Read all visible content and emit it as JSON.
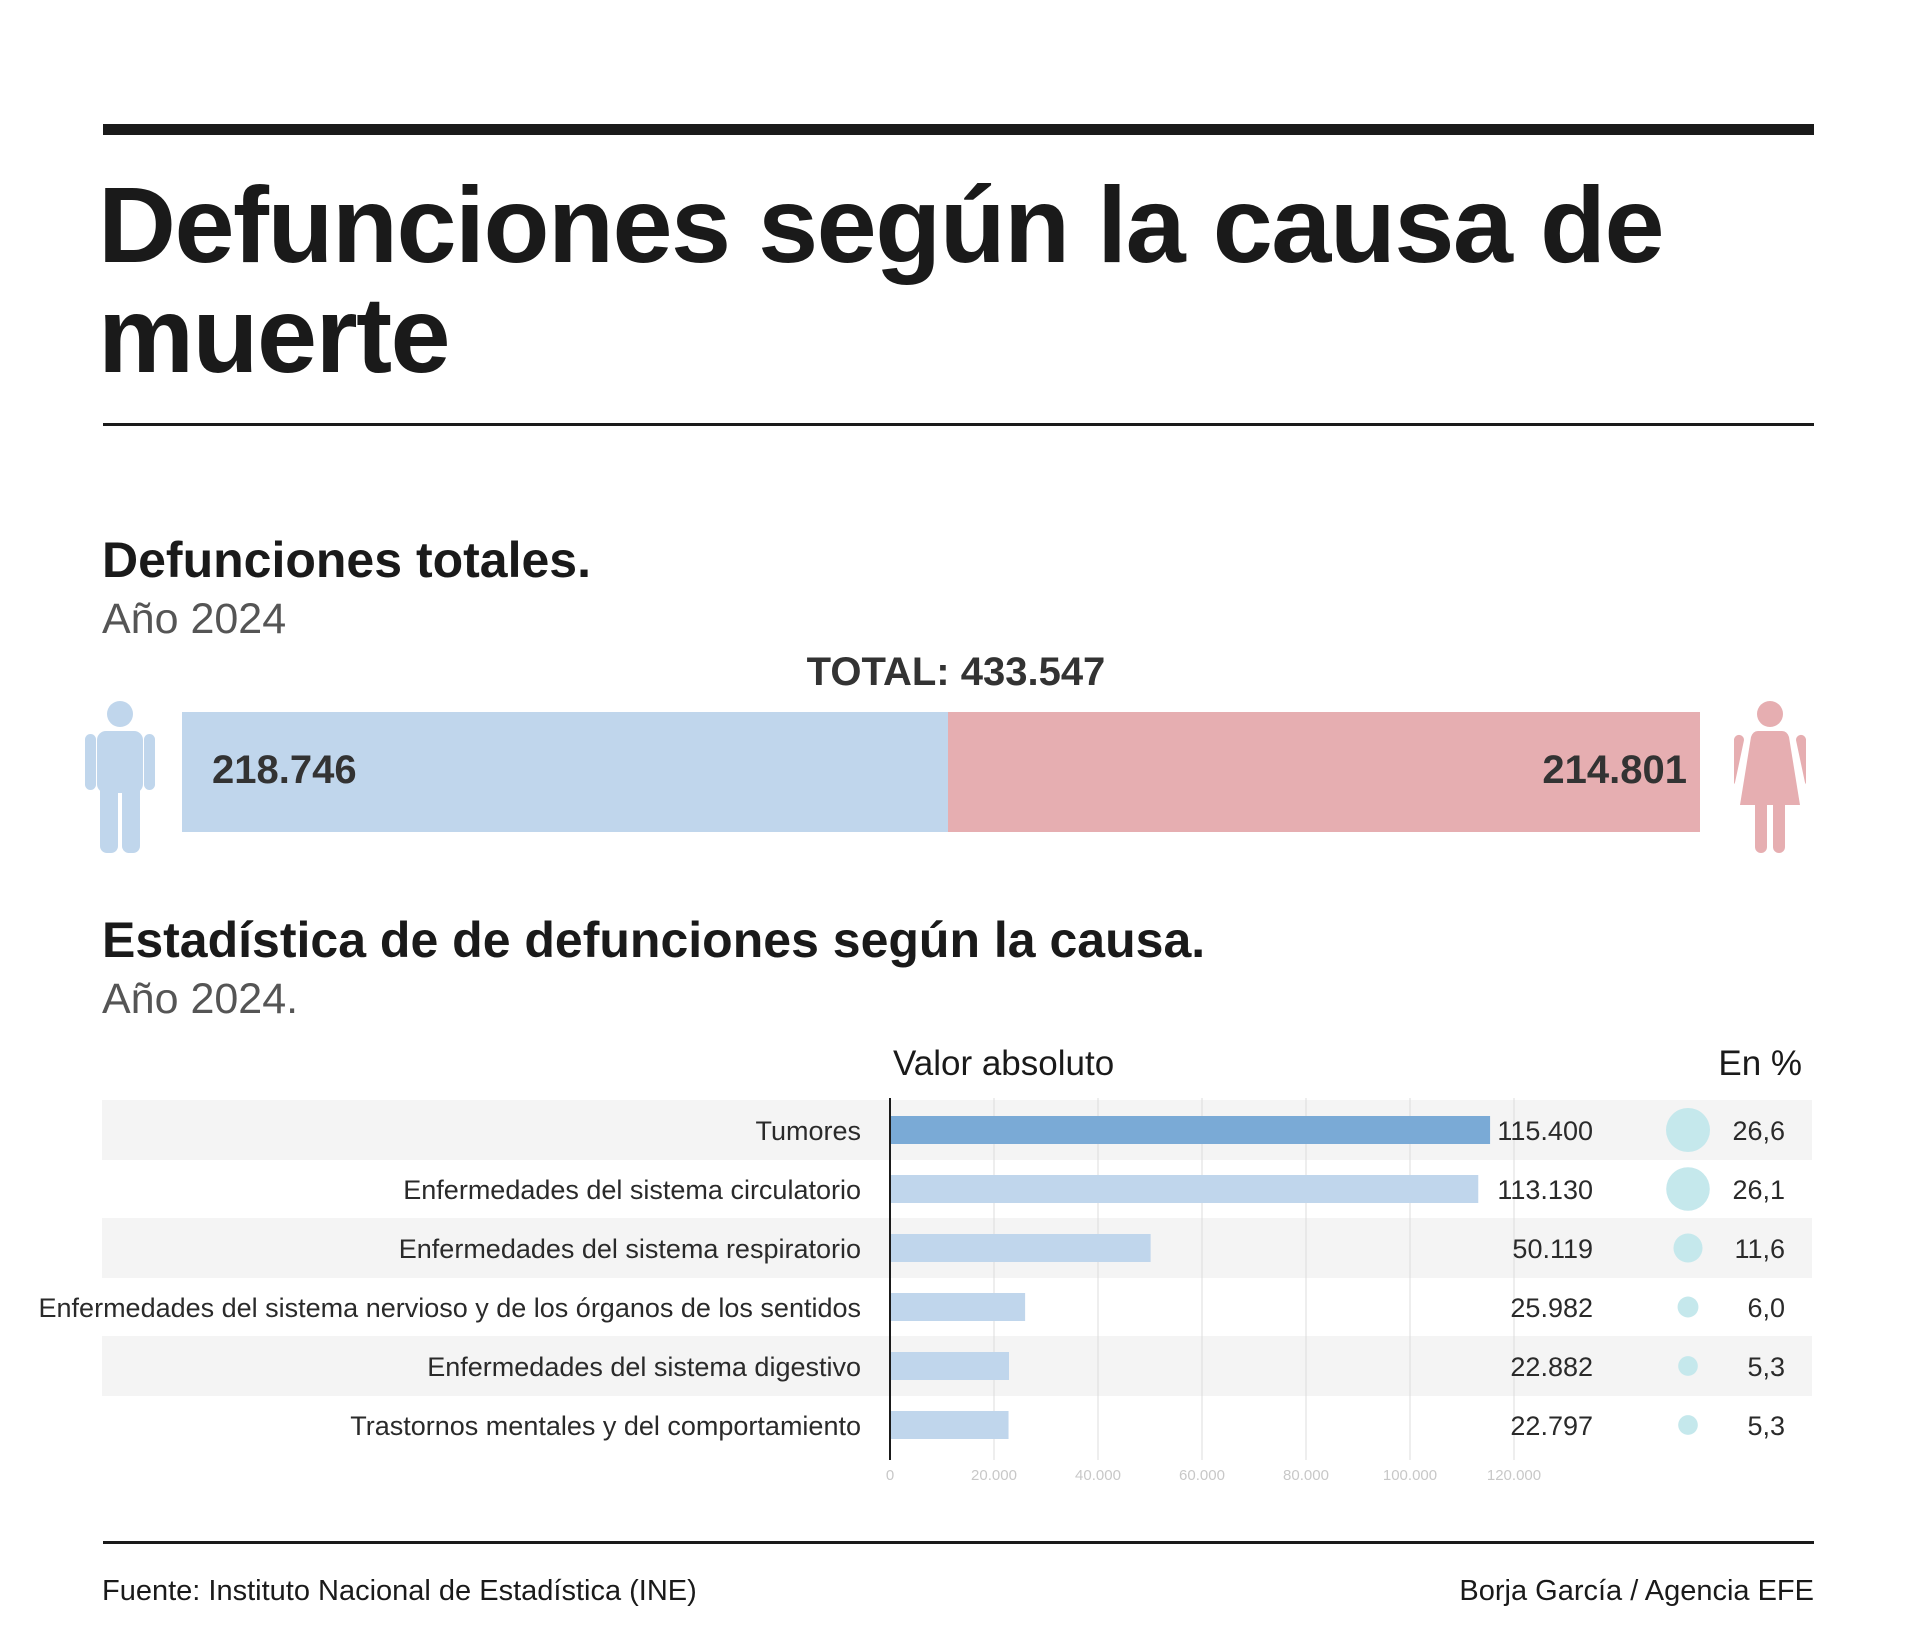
{
  "header": {
    "title": "Defunciones según la causa de muerte"
  },
  "totals_section": {
    "title": "Defunciones totales.",
    "subtitle": "Año 2024",
    "total_label": "TOTAL: 433.547",
    "men_value_label": "218.746",
    "women_value_label": "214.801",
    "men_icon": "male-figure-icon",
    "women_icon": "female-figure-icon",
    "colors": {
      "men": "#c0d6ec",
      "women": "#e6aeb1",
      "men_icon": "#c0d6ec",
      "women_icon": "#e6aeb1"
    }
  },
  "causes_section": {
    "title": "Estadística de de defunciones según la causa.",
    "subtitle": "Año 2024.",
    "col_absolute": "Valor absoluto",
    "col_percent": "En %"
  },
  "chart_data": [
    {
      "type": "bar",
      "orientation": "horizontal",
      "stacked": true,
      "categories": [
        "Total"
      ],
      "series": [
        {
          "value": 218746,
          "color": "#c0d6ec"
        },
        {
          "value": 214801,
          "color": "#e6aeb1"
        }
      ]
    },
    {
      "type": "bar",
      "orientation": "horizontal",
      "categories": [
        "Tumores",
        "Enfermedades del sistema circulatorio",
        "Enfermedades del sistema respiratorio",
        "Enfermedades del sistema nervioso y de los órganos de los sentidos",
        "Enfermedades del sistema digestivo",
        "Trastornos mentales y del comportamiento"
      ],
      "values": [
        115400,
        113130,
        50119,
        25982,
        22882,
        22797
      ],
      "value_labels": [
        "115.400",
        "113.130",
        "50.119",
        "25.982",
        "22.882",
        "22.797"
      ],
      "percent_values": [
        26.6,
        26.1,
        11.6,
        6.0,
        5.3,
        5.3
      ],
      "percent_labels": [
        "26,6",
        "26,1",
        "11,6",
        "6,0",
        "5,3",
        "5,3"
      ],
      "xlim": [
        0,
        120000
      ],
      "xticks": [
        0,
        20000,
        40000,
        60000,
        80000,
        100000,
        120000
      ],
      "xtick_labels": [
        "0",
        "20.000",
        "40.000",
        "60.000",
        "80.000",
        "100.000",
        "120.000"
      ],
      "grid": true,
      "colors": {
        "highlight_bar": "#7aaad6",
        "bar": "#c0d6ec",
        "bubble": "#c5e8ec",
        "row_band": "#f4f4f4",
        "grid": "#dddddd"
      }
    }
  ],
  "footer": {
    "source": "Fuente: Instituto Nacional de Estadística (INE)",
    "credit": "Borja García / Agencia EFE"
  }
}
